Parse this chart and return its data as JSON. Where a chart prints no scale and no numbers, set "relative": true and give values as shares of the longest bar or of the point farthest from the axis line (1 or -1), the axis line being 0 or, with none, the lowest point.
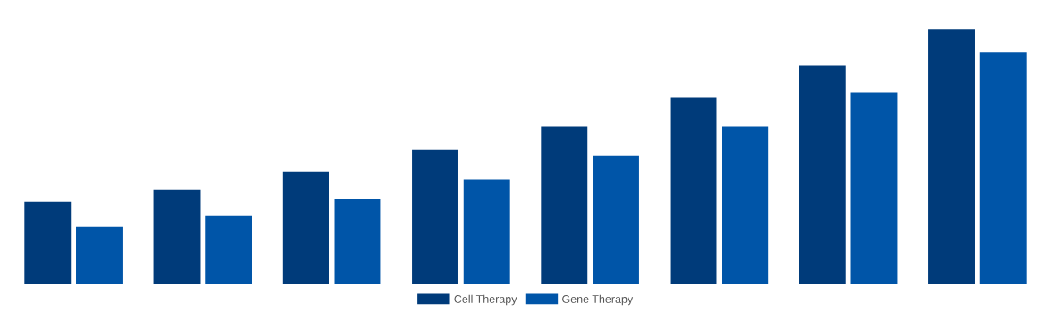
{
  "chart_data": {
    "type": "bar",
    "relative": true,
    "categories": [
      null,
      null,
      null,
      null,
      null,
      null,
      null,
      null
    ],
    "series": [
      {
        "name": "Cell Therapy",
        "color": "#003b7a",
        "values": [
          0.323,
          0.372,
          0.442,
          0.526,
          0.618,
          0.73,
          0.856,
          1
        ]
      },
      {
        "name": "Gene Therapy",
        "color": "#0055a8",
        "values": [
          0.225,
          0.27,
          0.333,
          0.411,
          0.505,
          0.618,
          0.751,
          0.909
        ]
      }
    ],
    "legend": "bottom",
    "grid": false
  }
}
